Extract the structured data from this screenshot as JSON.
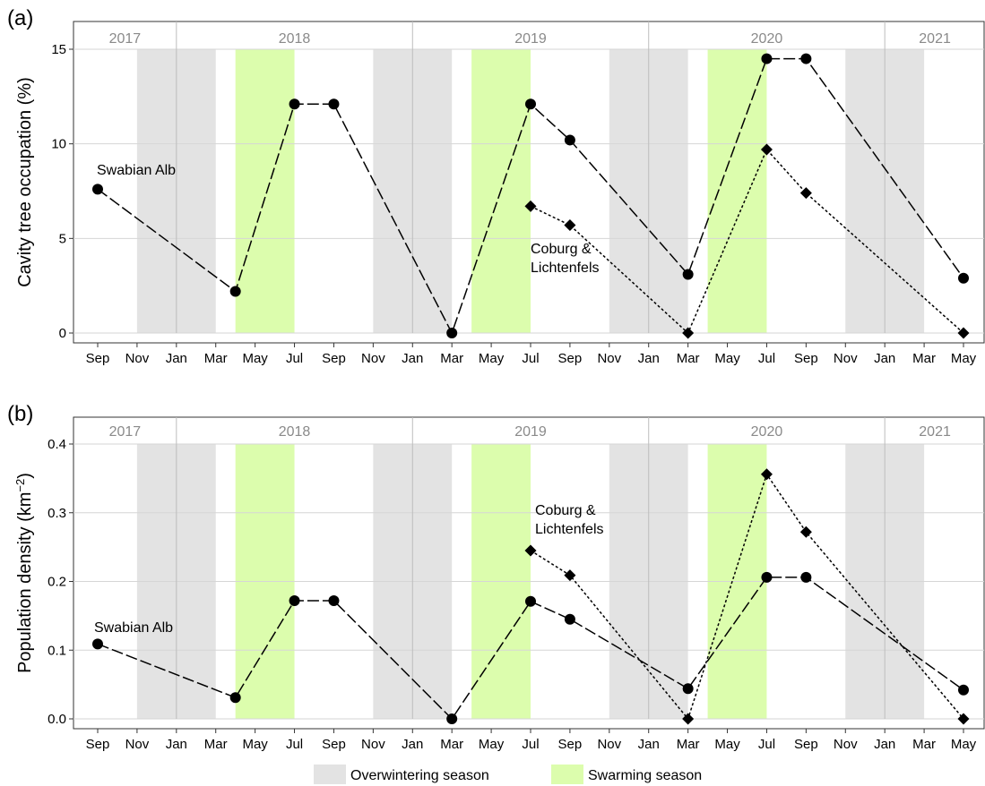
{
  "colors": {
    "overwintering": "#e3e3e3",
    "swarming": "#dcfdad",
    "grid": "#d6d6d6",
    "year_divider": "#bdbdbd",
    "year_text": "#8a8a8a",
    "line": "#000000"
  },
  "x_tick_labels": [
    "Sep",
    "Nov",
    "Jan",
    "Mar",
    "May",
    "Jul",
    "Sep",
    "Nov",
    "Jan",
    "Mar",
    "May",
    "Jul",
    "Sep",
    "Nov",
    "Jan",
    "Mar",
    "May",
    "Jul",
    "Sep",
    "Nov",
    "Jan",
    "Mar",
    "May"
  ],
  "legend": {
    "overwintering": "Overwintering season",
    "swarming": "Swarming season"
  },
  "chart_data": [
    {
      "type": "line",
      "panel_label": "(a)",
      "ylabel": "Cavity tree occupation (%)",
      "ylim": [
        0,
        15
      ],
      "yticks": [
        "0",
        "5",
        "10",
        "15"
      ],
      "x_range": [
        "2017-09",
        "2021-05"
      ],
      "year_labels": [
        "2017",
        "2018",
        "2019",
        "2020",
        "2021"
      ],
      "overwintering_seasons": [
        [
          "2017-11",
          "2018-03"
        ],
        [
          "2018-11",
          "2019-03"
        ],
        [
          "2019-11",
          "2020-03"
        ],
        [
          "2020-11",
          "2021-03"
        ]
      ],
      "swarming_seasons": [
        [
          "2018-04",
          "2018-06"
        ],
        [
          "2019-04",
          "2019-06"
        ],
        [
          "2020-04",
          "2020-06"
        ]
      ],
      "grid": true,
      "series": [
        {
          "name": "Swabian Alb",
          "style": "long-dash",
          "marker": "circle",
          "x": [
            "2017-09",
            "2018-04",
            "2018-07",
            "2018-09",
            "2019-03",
            "2019-07",
            "2019-09",
            "2020-03",
            "2020-07",
            "2020-09",
            "2021-05"
          ],
          "y": [
            7.6,
            2.2,
            12.1,
            12.1,
            0.0,
            12.1,
            10.2,
            3.1,
            14.5,
            14.5,
            2.9
          ]
        },
        {
          "name": "Coburg & Lichtenfels",
          "style": "dotted",
          "marker": "diamond",
          "x": [
            "2019-07",
            "2019-09",
            "2020-03",
            "2020-07",
            "2020-09",
            "2021-05"
          ],
          "y": [
            6.7,
            5.7,
            0.0,
            9.7,
            7.4,
            0.0
          ]
        }
      ],
      "annotations": [
        {
          "text": "Swabian Alb",
          "lines": [
            "Swabian Alb"
          ]
        },
        {
          "text": "Coburg & Lichtenfels",
          "lines": [
            "Coburg &",
            "Lichtenfels"
          ]
        }
      ]
    },
    {
      "type": "line",
      "panel_label": "(b)",
      "ylabel": "Population density (km",
      "ylabel_sup": "−2",
      "ylabel_end": ")",
      "ylim": [
        0,
        0.4
      ],
      "yticks": [
        "0.0",
        "0.1",
        "0.2",
        "0.3",
        "0.4"
      ],
      "x_range": [
        "2017-09",
        "2021-05"
      ],
      "year_labels": [
        "2017",
        "2018",
        "2019",
        "2020",
        "2021"
      ],
      "overwintering_seasons": [
        [
          "2017-11",
          "2018-03"
        ],
        [
          "2018-11",
          "2019-03"
        ],
        [
          "2019-11",
          "2020-03"
        ],
        [
          "2020-11",
          "2021-03"
        ]
      ],
      "swarming_seasons": [
        [
          "2018-04",
          "2018-06"
        ],
        [
          "2019-04",
          "2019-06"
        ],
        [
          "2020-04",
          "2020-06"
        ]
      ],
      "grid": true,
      "series": [
        {
          "name": "Swabian Alb",
          "style": "long-dash",
          "marker": "circle",
          "x": [
            "2017-09",
            "2018-04",
            "2018-07",
            "2018-09",
            "2019-03",
            "2019-07",
            "2019-09",
            "2020-03",
            "2020-07",
            "2020-09",
            "2021-05"
          ],
          "y": [
            0.109,
            0.031,
            0.172,
            0.172,
            0.0,
            0.171,
            0.145,
            0.044,
            0.206,
            0.206,
            0.042
          ]
        },
        {
          "name": "Coburg & Lichtenfels",
          "style": "dotted",
          "marker": "diamond",
          "x": [
            "2019-07",
            "2019-09",
            "2020-03",
            "2020-07",
            "2020-09",
            "2021-05"
          ],
          "y": [
            0.245,
            0.209,
            0.0,
            0.356,
            0.272,
            0.0
          ]
        }
      ],
      "annotations": [
        {
          "text": "Swabian Alb",
          "lines": [
            "Swabian Alb"
          ]
        },
        {
          "text": "Coburg & Lichtenfels",
          "lines": [
            "Coburg &",
            "Lichtenfels"
          ]
        }
      ]
    }
  ]
}
